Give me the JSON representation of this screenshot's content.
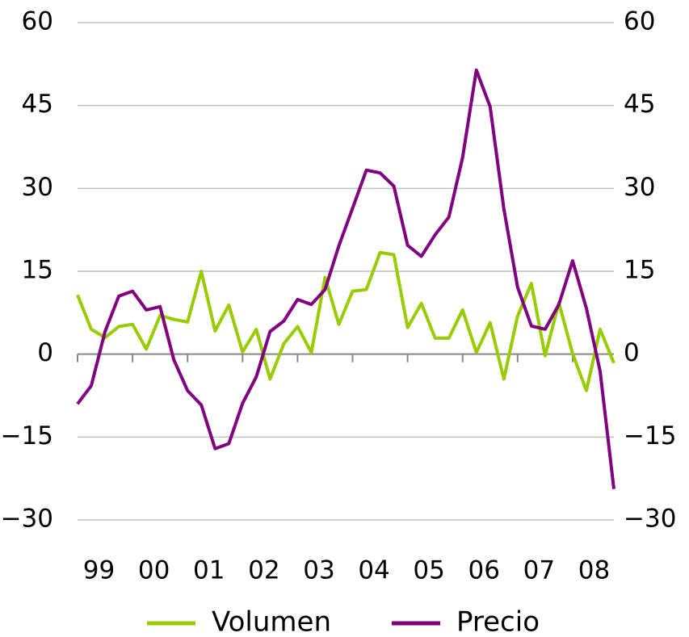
{
  "chart_data": {
    "type": "line",
    "categories": [
      "99",
      null,
      null,
      null,
      "00",
      null,
      null,
      null,
      "01",
      null,
      null,
      null,
      "02",
      null,
      null,
      null,
      "03",
      null,
      null,
      null,
      "04",
      null,
      null,
      null,
      "05",
      null,
      null,
      null,
      "06",
      null,
      null,
      null,
      "07",
      null,
      null,
      null,
      "08",
      null,
      null,
      null
    ],
    "series": [
      {
        "name": "Volumen",
        "color": "#99cc00",
        "values": [
          10.7,
          4.5,
          3,
          5,
          5.4,
          0.9,
          7,
          6.3,
          5.8,
          15,
          4.2,
          8.9,
          0.4,
          4.5,
          -4.5,
          1.9,
          5,
          0.3,
          13.9,
          5.4,
          11.4,
          11.7,
          18.4,
          18,
          4.8,
          9.2,
          2.9,
          2.9,
          8,
          0.3,
          5.7,
          -4.5,
          6.9,
          12.8,
          -0.3,
          9.3,
          0.1,
          -6.6,
          4.5,
          -1.6
        ]
      },
      {
        "name": "Precio",
        "color": "#800080",
        "axis": "y2",
        "values": [
          -9,
          -5.7,
          4.1,
          10.5,
          11.4,
          8,
          8.6,
          -1,
          -6.6,
          -9.2,
          -17.1,
          -16.2,
          -8.9,
          -4.1,
          4.1,
          6,
          9.9,
          9,
          11.7,
          19.6,
          26.4,
          33.3,
          32.8,
          30.4,
          19.7,
          17.7,
          21.6,
          24.8,
          35.6,
          51.4,
          44.8,
          26.3,
          12.1,
          5.1,
          4.5,
          9,
          16.9,
          8.3,
          -3.1,
          -24.4
        ]
      }
    ],
    "ylim": [
      -30,
      60
    ],
    "yticks": [
      {
        "value": -30,
        "label": "−30"
      },
      {
        "value": -15,
        "label": "−15"
      },
      0,
      15,
      30,
      45,
      60
    ],
    "y2lim": [
      -30,
      60
    ],
    "y2ticks": [
      {
        "value": -30,
        "label": "−30"
      },
      {
        "value": -15,
        "label": "−15"
      },
      0,
      15,
      30,
      45,
      60
    ],
    "grid": true,
    "legend": "bottom"
  }
}
